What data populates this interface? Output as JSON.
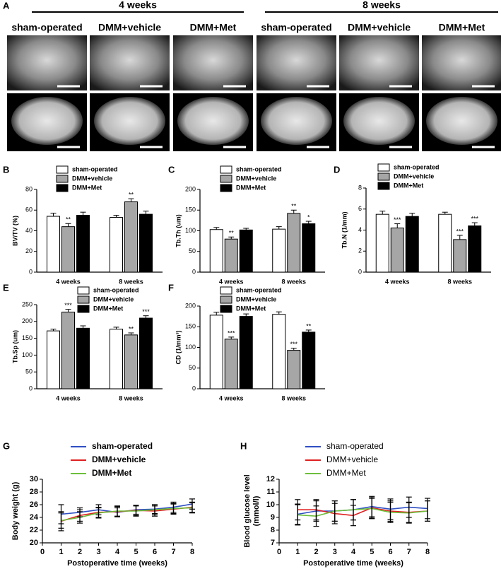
{
  "panel_a": {
    "label": "A",
    "groups": [
      "4 weeks",
      "8 weeks"
    ],
    "columns": [
      "sham-operated",
      "DMM+vehicle",
      "DMM+Met",
      "sham-operated",
      "DMM+vehicle",
      "DMM+Met"
    ]
  },
  "chart_data": [
    {
      "type": "bar",
      "panel_label": "B",
      "ylabel": "BV/TV (%)",
      "categories": [
        "4 weeks",
        "8 weeks"
      ],
      "ylim": [
        0,
        80
      ],
      "yticks": [
        0,
        20,
        40,
        60,
        80
      ],
      "series": [
        {
          "name": "sham-operated",
          "color": "#ffffff",
          "values": [
            54,
            53
          ],
          "errors": [
            3,
            2
          ],
          "stars": [
            null,
            null
          ]
        },
        {
          "name": "DMM+vehicle",
          "color": "#a6a6a6",
          "values": [
            44,
            68
          ],
          "errors": [
            3,
            3
          ],
          "stars": [
            "**",
            "**"
          ]
        },
        {
          "name": "DMM+Met",
          "color": "#000000",
          "values": [
            55,
            56
          ],
          "errors": [
            3,
            3
          ],
          "stars": [
            null,
            null
          ]
        }
      ]
    },
    {
      "type": "bar",
      "panel_label": "C",
      "ylabel": "Tb.Th (um)",
      "categories": [
        "4 weeks",
        "8 weeks"
      ],
      "ylim": [
        0,
        200
      ],
      "yticks": [
        0,
        50,
        100,
        150,
        200
      ],
      "series": [
        {
          "name": "sham-operated",
          "color": "#ffffff",
          "values": [
            103,
            104
          ],
          "errors": [
            5,
            6
          ],
          "stars": [
            null,
            null
          ]
        },
        {
          "name": "DMM+vehicle",
          "color": "#a6a6a6",
          "values": [
            80,
            142
          ],
          "errors": [
            5,
            8
          ],
          "stars": [
            "**",
            "**"
          ]
        },
        {
          "name": "DMM+Met",
          "color": "#000000",
          "values": [
            102,
            117
          ],
          "errors": [
            4,
            6
          ],
          "stars": [
            null,
            "*"
          ]
        }
      ]
    },
    {
      "type": "bar",
      "panel_label": "D",
      "ylabel": "Tb.N (1/mm)",
      "categories": [
        "4 weeks",
        "8 weeks"
      ],
      "ylim": [
        0,
        8
      ],
      "yticks": [
        0,
        2,
        4,
        6,
        8
      ],
      "series": [
        {
          "name": "sham-operated",
          "color": "#ffffff",
          "values": [
            5.5,
            5.5
          ],
          "errors": [
            0.3,
            0.2
          ],
          "stars": [
            null,
            null
          ]
        },
        {
          "name": "DMM+vehicle",
          "color": "#a6a6a6",
          "values": [
            4.2,
            3.1
          ],
          "errors": [
            0.4,
            0.4
          ],
          "stars": [
            "***",
            "***"
          ]
        },
        {
          "name": "DMM+Met",
          "color": "#000000",
          "values": [
            5.3,
            4.4
          ],
          "errors": [
            0.3,
            0.3
          ],
          "stars": [
            null,
            "***"
          ]
        }
      ]
    },
    {
      "type": "bar",
      "panel_label": "E",
      "ylabel": "Tb.Sp (um)",
      "categories": [
        "4 weeks",
        "8 weeks"
      ],
      "ylim": [
        0,
        250
      ],
      "yticks": [
        0,
        50,
        100,
        150,
        200,
        250
      ],
      "series": [
        {
          "name": "sham-operated",
          "color": "#ffffff",
          "values": [
            172,
            177
          ],
          "errors": [
            5,
            6
          ],
          "stars": [
            null,
            null
          ]
        },
        {
          "name": "DMM+vehicle",
          "color": "#a6a6a6",
          "values": [
            228,
            160
          ],
          "errors": [
            8,
            6
          ],
          "stars": [
            "***",
            "**"
          ]
        },
        {
          "name": "DMM+Met",
          "color": "#000000",
          "values": [
            180,
            210
          ],
          "errors": [
            7,
            7
          ],
          "stars": [
            null,
            "***"
          ]
        }
      ]
    },
    {
      "type": "bar",
      "panel_label": "F",
      "ylabel": "CD (1/mm³)",
      "categories": [
        "4 weeks",
        "8 weeks"
      ],
      "ylim": [
        0,
        200
      ],
      "yticks": [
        0,
        50,
        100,
        150,
        200
      ],
      "series": [
        {
          "name": "sham-operated",
          "color": "#ffffff",
          "values": [
            178,
            180
          ],
          "errors": [
            7,
            6
          ],
          "stars": [
            null,
            null
          ]
        },
        {
          "name": "DMM+vehicle",
          "color": "#a6a6a6",
          "values": [
            120,
            93
          ],
          "errors": [
            5,
            5
          ],
          "stars": [
            "***",
            "***"
          ]
        },
        {
          "name": "DMM+Met",
          "color": "#000000",
          "values": [
            175,
            137
          ],
          "errors": [
            6,
            5
          ],
          "stars": [
            null,
            "**"
          ]
        }
      ]
    },
    {
      "type": "line",
      "panel_label": "G",
      "ylabel": "Body weight (g)",
      "xlabel": "Postoperative time (weeks)",
      "legend_bold": true,
      "x": [
        1,
        2,
        3,
        4,
        5,
        6,
        7,
        8
      ],
      "xlim": [
        0,
        8
      ],
      "xticks": [
        0,
        1,
        2,
        3,
        4,
        5,
        6,
        7,
        8
      ],
      "ylim": [
        20,
        30
      ],
      "yticks": [
        20,
        22,
        24,
        26,
        28,
        30
      ],
      "series": [
        {
          "name": "sham-operated",
          "color": "#2e4fc4",
          "values": [
            24.5,
            24.8,
            25.2,
            24.8,
            25.2,
            25.3,
            25.6,
            26.1
          ],
          "errors": [
            1.5,
            0.7,
            0.8,
            0.7,
            0.7,
            0.7,
            0.8,
            0.8
          ]
        },
        {
          "name": "DMM+vehicle",
          "color": "#e02020",
          "values": [
            23.4,
            24.3,
            24.8,
            24.9,
            25.1,
            25.0,
            25.3,
            25.6
          ],
          "errors": [
            1.5,
            0.9,
            0.8,
            0.8,
            0.8,
            0.8,
            0.8,
            0.8
          ]
        },
        {
          "name": "DMM+Met",
          "color": "#6cbf3a",
          "values": [
            23.5,
            24.0,
            24.7,
            25.0,
            25.0,
            25.2,
            25.4,
            25.5
          ],
          "errors": [
            1.2,
            0.9,
            0.8,
            0.8,
            0.8,
            0.8,
            0.8,
            0.8
          ]
        }
      ]
    },
    {
      "type": "line",
      "panel_label": "H",
      "ylabel": [
        "Blood glucose level",
        "(mmol/l)"
      ],
      "xlabel": "Postoperative time (weeks)",
      "legend_bold": false,
      "x": [
        1,
        2,
        3,
        4,
        5,
        6,
        7,
        8
      ],
      "xlim": [
        0,
        8
      ],
      "xticks": [
        0,
        1,
        2,
        3,
        4,
        5,
        6,
        7,
        8
      ],
      "ylim": [
        7,
        12
      ],
      "yticks": [
        7,
        8,
        9,
        10,
        11,
        12
      ],
      "series": [
        {
          "name": "sham-operated",
          "color": "#2e4fc4",
          "values": [
            9.25,
            9.5,
            9.5,
            9.6,
            9.85,
            9.65,
            9.8,
            9.7
          ],
          "errors": [
            0.8,
            0.8,
            0.8,
            0.8,
            0.8,
            0.8,
            0.8,
            0.8
          ]
        },
        {
          "name": "DMM+vehicle",
          "color": "#e02020",
          "values": [
            9.6,
            9.6,
            9.3,
            9.15,
            9.75,
            9.5,
            9.4,
            9.5
          ],
          "errors": [
            0.8,
            0.8,
            0.8,
            0.8,
            0.8,
            0.8,
            0.8,
            0.8
          ]
        },
        {
          "name": "DMM+Met",
          "color": "#6cbf3a",
          "values": [
            9.2,
            9.1,
            9.5,
            9.6,
            9.7,
            9.4,
            9.35,
            9.5
          ],
          "errors": [
            0.8,
            0.8,
            0.8,
            0.8,
            0.8,
            0.8,
            0.8,
            0.8
          ]
        }
      ]
    }
  ]
}
